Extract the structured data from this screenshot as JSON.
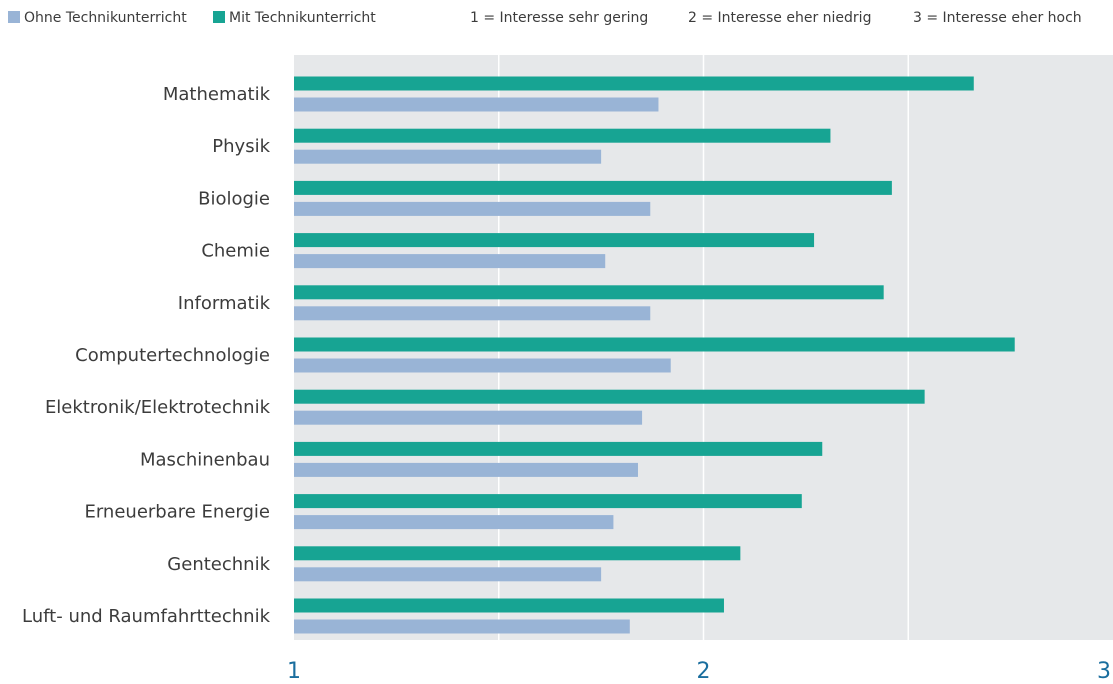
{
  "legend": {
    "series_without": "Ohne Technikunterricht",
    "series_with": "Mit Technikunterricht",
    "scale_1": "1 = Interesse sehr gering",
    "scale_2": "2 = Interesse eher niedrig",
    "scale_3": "3 = Interesse eher hoch"
  },
  "colors": {
    "with": "#17a493",
    "without": "#99b4d6",
    "plot_bg": "#e6e8ea",
    "tick_label": "#1a6e9e"
  },
  "chart_data": {
    "type": "bar",
    "orientation": "horizontal",
    "categories": [
      "Mathematik",
      "Physik",
      "Biologie",
      "Chemie",
      "Informatik",
      "Computertechnologie",
      "Elektronik/Elektrotechnik",
      "Maschinenbau",
      "Erneuerbare Energie",
      "Gentechnik",
      "Luft- und Raumfahrttechnik"
    ],
    "series": [
      {
        "name": "Mit Technikunterricht",
        "values": [
          2.66,
          2.31,
          2.46,
          2.27,
          2.44,
          2.76,
          2.54,
          2.29,
          2.24,
          2.09,
          2.05
        ]
      },
      {
        "name": "Ohne Technikunterricht",
        "values": [
          1.89,
          1.75,
          1.87,
          1.76,
          1.87,
          1.92,
          1.85,
          1.84,
          1.78,
          1.75,
          1.82
        ]
      }
    ],
    "xlim": [
      1,
      3
    ],
    "xticks": [
      "1",
      "2",
      "3"
    ],
    "xlabel": "",
    "ylabel": "",
    "title": "",
    "grid": true,
    "legend_position": "top"
  }
}
